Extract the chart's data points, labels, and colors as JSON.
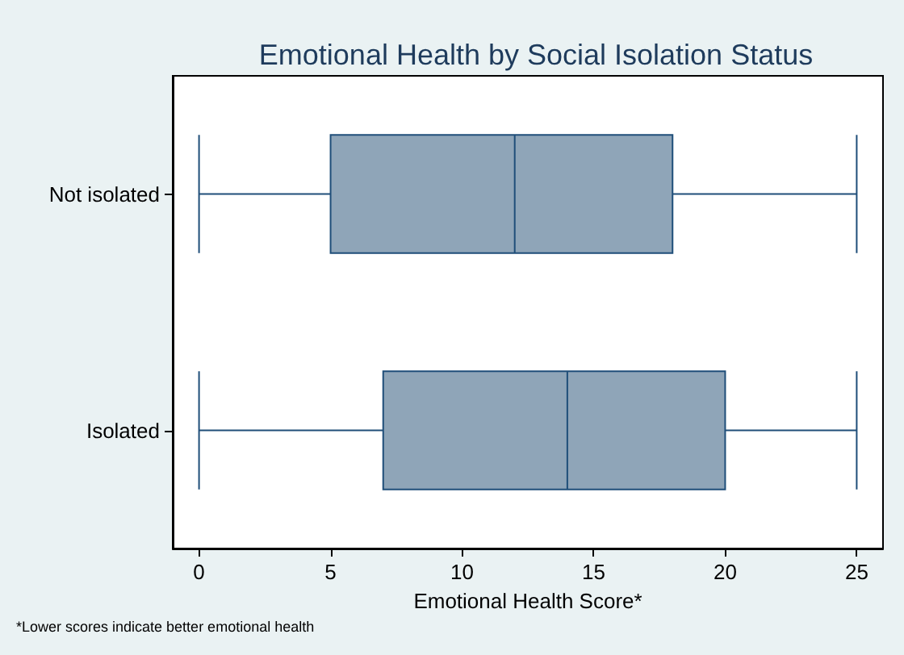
{
  "chart_data": {
    "type": "box",
    "orientation": "horizontal",
    "title": "Emotional Health by Social Isolation Status",
    "xlabel": "Emotional Health Score*",
    "annotations": [
      "*Lower scores indicate better emotional health"
    ],
    "categories": [
      "Not isolated",
      "Isolated"
    ],
    "boxes": [
      {
        "low": 0,
        "q1": 5,
        "median": 12,
        "q3": 18,
        "high": 25
      },
      {
        "low": 0,
        "q1": 7,
        "median": 14,
        "q3": 20,
        "high": 25
      }
    ],
    "color": "#8fa5b8",
    "xlim": [
      -1,
      26
    ],
    "xticks": [
      0,
      5,
      10,
      15,
      20,
      25
    ],
    "grid": false
  }
}
